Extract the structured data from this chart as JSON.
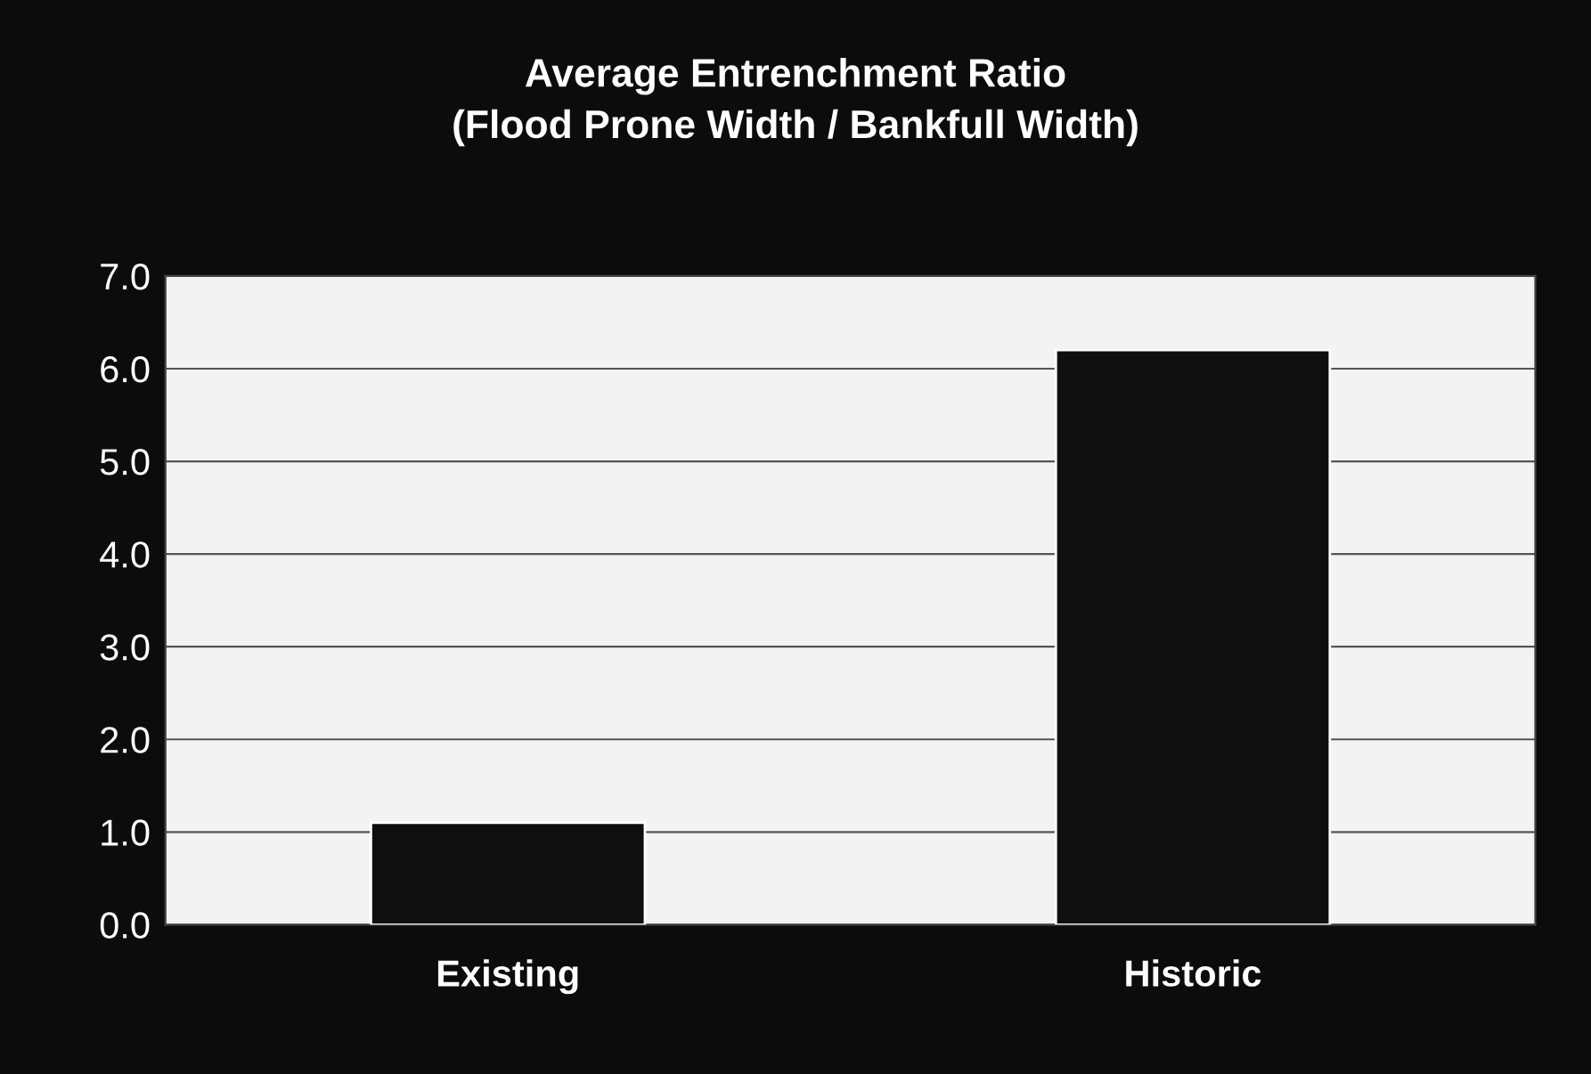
{
  "chart_data": {
    "type": "bar",
    "title": "Average Entrenchment Ratio\n(Flood Prone Width / Bankfull Width)",
    "categories": [
      "Existing",
      "Historic"
    ],
    "values": [
      1.1,
      6.2
    ],
    "color": "#0f0f0f",
    "ylim": [
      0,
      7
    ],
    "yticks": [
      {
        "value": 0,
        "label": "0.0"
      },
      {
        "value": 1,
        "label": "1.0"
      },
      {
        "value": 2,
        "label": "2.0"
      },
      {
        "value": 3,
        "label": "3.0"
      },
      {
        "value": 4,
        "label": "4.0"
      },
      {
        "value": 5,
        "label": "5.0"
      },
      {
        "value": 6,
        "label": "6.0"
      },
      {
        "value": 7,
        "label": "7.0"
      }
    ],
    "grid": "y"
  }
}
